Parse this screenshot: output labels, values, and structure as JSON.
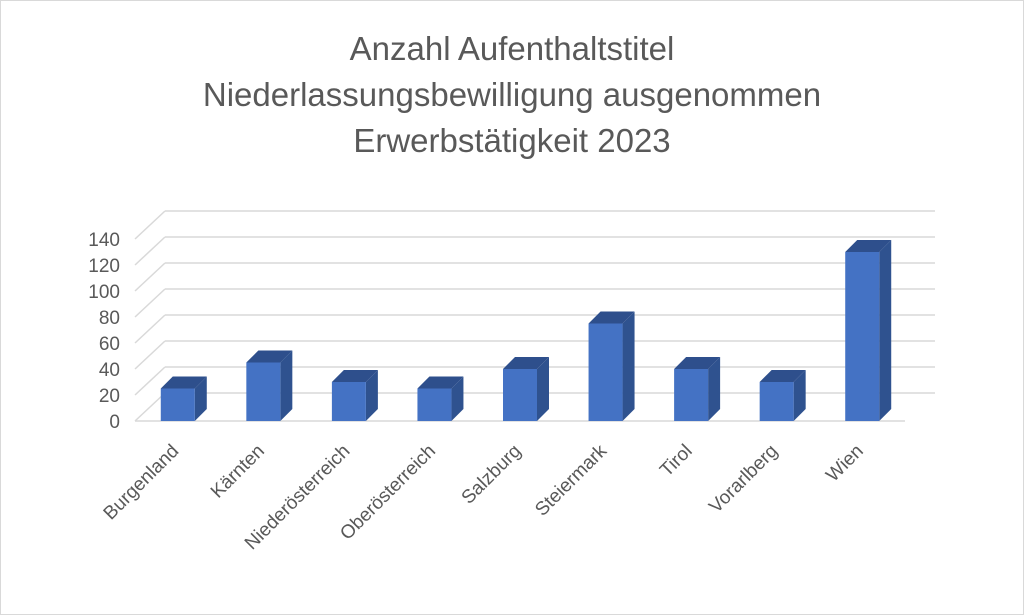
{
  "chart_data": {
    "type": "bar",
    "title_lines": [
      "Anzahl Aufenthaltstitel",
      "Niederlassungsbewilligung ausgenommen",
      "Erwerbstätigkeit 2023"
    ],
    "categories": [
      "Burgenland",
      "Kärnten",
      "Niederösterreich",
      "Oberösterreich",
      "Salzburg",
      "Steiermark",
      "Tirol",
      "Vorarlberg",
      "Wien"
    ],
    "values": [
      25,
      45,
      30,
      25,
      40,
      75,
      40,
      30,
      130
    ],
    "yticks": [
      "0",
      "20",
      "40",
      "60",
      "80",
      "100",
      "120",
      "140"
    ],
    "ylim": [
      0,
      140
    ],
    "grid": true,
    "legend": "none",
    "style": "3d-column",
    "colors": {
      "bar_front": "#4472c4",
      "bar_side": "#2f528f",
      "bar_top": "#2e4f8c",
      "grid": "#d9d9d9",
      "text": "#595959"
    }
  }
}
